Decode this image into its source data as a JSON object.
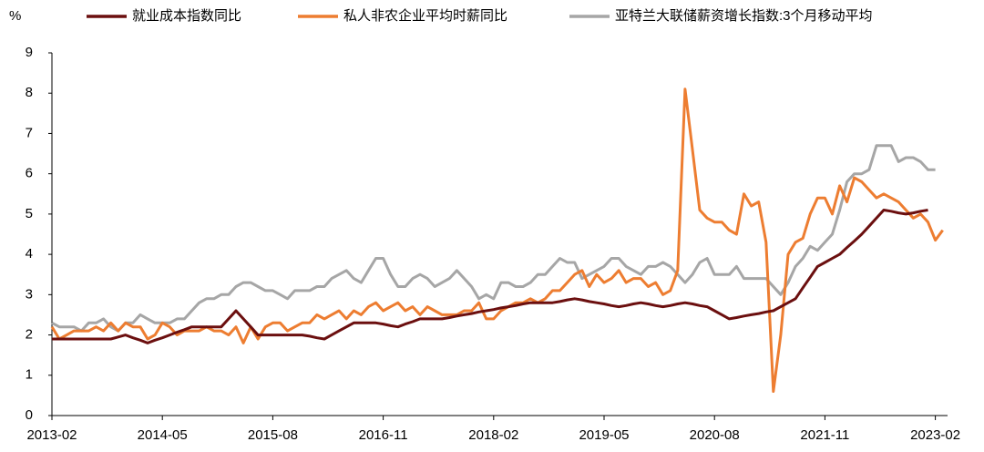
{
  "chart_data": {
    "type": "line",
    "y_label": "%",
    "categories": [
      "2013-02",
      null,
      null,
      null,
      null,
      null,
      null,
      null,
      null,
      null,
      null,
      null,
      null,
      null,
      null,
      "2014-05",
      null,
      null,
      null,
      null,
      null,
      null,
      null,
      null,
      null,
      null,
      null,
      null,
      null,
      null,
      "2015-08",
      null,
      null,
      null,
      null,
      null,
      null,
      null,
      null,
      null,
      null,
      null,
      null,
      null,
      null,
      "2016-11",
      null,
      null,
      null,
      null,
      null,
      null,
      null,
      null,
      null,
      null,
      null,
      null,
      null,
      null,
      "2018-02",
      null,
      null,
      null,
      null,
      null,
      null,
      null,
      null,
      null,
      null,
      null,
      null,
      null,
      null,
      "2019-05",
      null,
      null,
      null,
      null,
      null,
      null,
      null,
      null,
      null,
      null,
      null,
      null,
      null,
      null,
      "2020-08",
      null,
      null,
      null,
      null,
      null,
      null,
      null,
      null,
      null,
      null,
      null,
      null,
      null,
      null,
      "2021-11",
      null,
      null,
      null,
      null,
      null,
      null,
      null,
      null,
      null,
      null,
      null,
      null,
      null,
      null,
      "2023-02",
      null
    ],
    "series": [
      {
        "name": "就业成本指数同比",
        "color": "#6b0f0f",
        "values": [
          1.9,
          1.9,
          1.9,
          1.9,
          1.9,
          1.9,
          1.9,
          1.9,
          1.9,
          1.95,
          2.0,
          1.93,
          1.87,
          1.8,
          1.87,
          1.93,
          2.0,
          2.07,
          2.13,
          2.2,
          2.2,
          2.2,
          2.2,
          2.2,
          2.4,
          2.6,
          2.4,
          2.2,
          2.0,
          2.0,
          2.0,
          2.0,
          2.0,
          2.0,
          2.0,
          1.97,
          1.93,
          1.9,
          2.0,
          2.1,
          2.2,
          2.3,
          2.3,
          2.3,
          2.3,
          2.27,
          2.23,
          2.2,
          2.27,
          2.33,
          2.4,
          2.4,
          2.4,
          2.4,
          2.43,
          2.47,
          2.5,
          2.53,
          2.57,
          2.6,
          2.63,
          2.67,
          2.7,
          2.73,
          2.77,
          2.8,
          2.8,
          2.8,
          2.8,
          2.83,
          2.87,
          2.9,
          2.87,
          2.83,
          2.8,
          2.77,
          2.73,
          2.7,
          2.73,
          2.77,
          2.8,
          2.77,
          2.73,
          2.7,
          2.73,
          2.77,
          2.8,
          2.77,
          2.73,
          2.7,
          2.6,
          2.5,
          2.4,
          2.43,
          2.47,
          2.5,
          2.53,
          2.57,
          2.6,
          2.7,
          2.8,
          2.9,
          3.17,
          3.43,
          3.7,
          3.8,
          3.9,
          4.0,
          4.17,
          4.33,
          4.5,
          4.7,
          4.9,
          5.1,
          5.07,
          5.03,
          5.0,
          5.03,
          5.07,
          5.1,
          null,
          null
        ]
      },
      {
        "name": "私人非农企业平均时薪同比",
        "color": "#ed7d31",
        "values": [
          2.2,
          1.9,
          2.0,
          2.1,
          2.1,
          2.1,
          2.2,
          2.1,
          2.3,
          2.1,
          2.3,
          2.2,
          2.2,
          1.9,
          2.0,
          2.3,
          2.2,
          2.0,
          2.1,
          2.1,
          2.1,
          2.2,
          2.1,
          2.1,
          2.0,
          2.2,
          1.8,
          2.2,
          1.9,
          2.2,
          2.3,
          2.3,
          2.1,
          2.2,
          2.3,
          2.3,
          2.5,
          2.4,
          2.5,
          2.6,
          2.4,
          2.6,
          2.5,
          2.7,
          2.8,
          2.6,
          2.7,
          2.8,
          2.6,
          2.7,
          2.5,
          2.7,
          2.6,
          2.5,
          2.5,
          2.5,
          2.6,
          2.6,
          2.8,
          2.4,
          2.4,
          2.6,
          2.7,
          2.8,
          2.8,
          2.9,
          2.8,
          2.9,
          3.1,
          3.1,
          3.3,
          3.5,
          3.6,
          3.2,
          3.5,
          3.3,
          3.4,
          3.6,
          3.3,
          3.4,
          3.4,
          3.2,
          3.3,
          3.0,
          3.1,
          3.6,
          8.1,
          6.6,
          5.1,
          4.9,
          4.8,
          4.8,
          4.6,
          4.5,
          5.5,
          5.2,
          5.3,
          4.3,
          0.6,
          2.0,
          4.0,
          4.3,
          4.4,
          5.0,
          5.4,
          5.4,
          5.0,
          5.7,
          5.3,
          5.9,
          5.8,
          5.6,
          5.4,
          5.5,
          5.4,
          5.3,
          5.1,
          4.9,
          5.0,
          4.8,
          4.35,
          4.6
        ]
      },
      {
        "name": "亚特兰大联储薪资增长指数:3个月移动平均",
        "color": "#a6a6a6",
        "values": [
          2.3,
          2.2,
          2.2,
          2.2,
          2.1,
          2.3,
          2.3,
          2.4,
          2.2,
          2.1,
          2.3,
          2.3,
          2.5,
          2.4,
          2.3,
          2.3,
          2.3,
          2.4,
          2.4,
          2.6,
          2.8,
          2.9,
          2.9,
          3.0,
          3.0,
          3.2,
          3.3,
          3.3,
          3.2,
          3.1,
          3.1,
          3.0,
          2.9,
          3.1,
          3.1,
          3.1,
          3.2,
          3.2,
          3.4,
          3.5,
          3.6,
          3.4,
          3.3,
          3.6,
          3.9,
          3.9,
          3.5,
          3.2,
          3.2,
          3.4,
          3.5,
          3.4,
          3.2,
          3.3,
          3.4,
          3.6,
          3.4,
          3.2,
          2.9,
          3.0,
          2.9,
          3.3,
          3.3,
          3.2,
          3.2,
          3.3,
          3.5,
          3.5,
          3.7,
          3.9,
          3.8,
          3.8,
          3.4,
          3.5,
          3.6,
          3.7,
          3.9,
          3.9,
          3.7,
          3.6,
          3.5,
          3.7,
          3.7,
          3.8,
          3.7,
          3.5,
          3.3,
          3.5,
          3.8,
          3.9,
          3.5,
          3.5,
          3.5,
          3.7,
          3.4,
          3.4,
          3.4,
          3.4,
          3.2,
          3.0,
          3.3,
          3.7,
          3.9,
          4.2,
          4.1,
          4.3,
          4.5,
          5.1,
          5.8,
          6.0,
          6.0,
          6.1,
          6.7,
          6.7,
          6.7,
          6.3,
          6.4,
          6.4,
          6.3,
          6.1,
          6.1,
          null
        ]
      }
    ],
    "ylim": [
      0,
      9
    ],
    "yticks": [
      0,
      1,
      2,
      3,
      4,
      5,
      6,
      7,
      8,
      9
    ],
    "grid": false,
    "legend": "top"
  }
}
